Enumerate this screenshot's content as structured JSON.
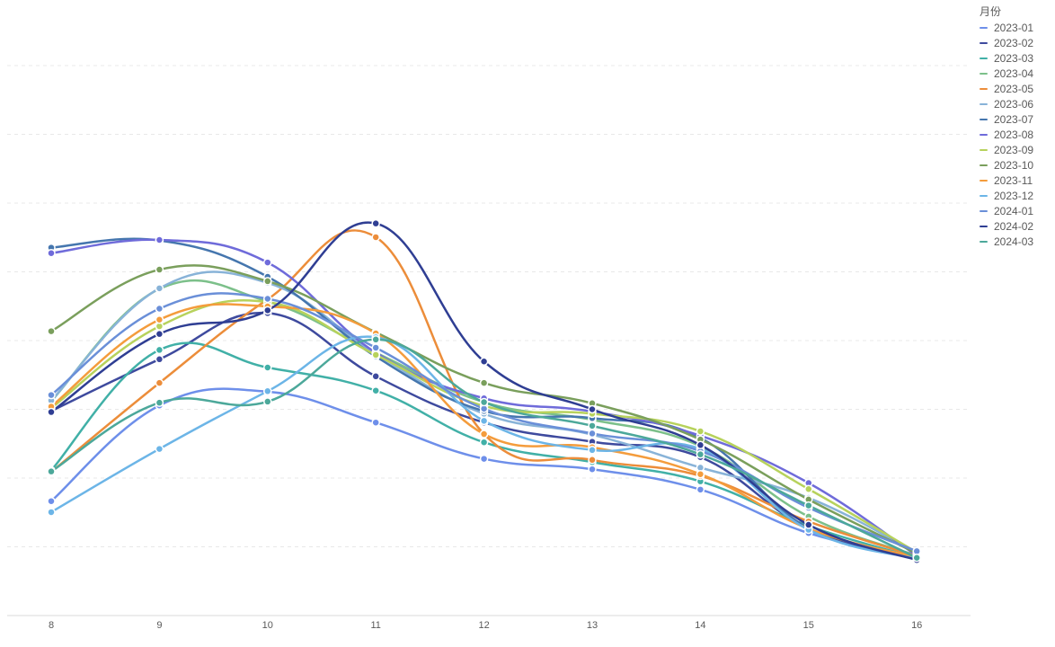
{
  "chart_data": {
    "type": "line",
    "title": "",
    "xlabel": "",
    "ylabel": "",
    "x": [
      "8",
      "9",
      "10",
      "11",
      "12",
      "13",
      "14",
      "15",
      "16"
    ],
    "ylim": [
      0,
      100
    ],
    "grid": true,
    "legend_title": "月份",
    "legend_position": "top-right",
    "series": [
      {
        "name": "2023-01",
        "color": "#6E8FEA",
        "values": [
          20.8,
          38.2,
          40.7,
          35.1,
          28.5,
          26.6,
          22.9,
          15.0,
          10.6
        ]
      },
      {
        "name": "2023-02",
        "color": "#3E4A9E",
        "values": [
          37.2,
          46.6,
          55.0,
          43.5,
          35.1,
          31.6,
          28.8,
          15.8,
          10.3
        ]
      },
      {
        "name": "2023-03",
        "color": "#41B0A7",
        "values": [
          26.4,
          48.3,
          45.1,
          40.9,
          31.5,
          27.9,
          24.4,
          16.3,
          10.5
        ]
      },
      {
        "name": "2023-04",
        "color": "#7CC08A",
        "values": [
          39.0,
          59.4,
          57.1,
          47.8,
          38.8,
          35.6,
          30.8,
          18.0,
          10.9
        ]
      },
      {
        "name": "2023-05",
        "color": "#EC8D3A",
        "values": [
          26.1,
          42.3,
          57.5,
          68.8,
          33.0,
          28.3,
          25.4,
          17.1,
          10.8
        ]
      },
      {
        "name": "2023-06",
        "color": "#88B3D8",
        "values": [
          39.1,
          59.5,
          60.5,
          47.6,
          36.7,
          32.9,
          26.9,
          21.4,
          11.4
        ]
      },
      {
        "name": "2023-07",
        "color": "#4576AE",
        "values": [
          66.9,
          68.2,
          61.6,
          47.1,
          37.2,
          35.9,
          32.3,
          15.8,
          10.5
        ]
      },
      {
        "name": "2023-08",
        "color": "#6F6BDA",
        "values": [
          65.9,
          68.3,
          64.2,
          47.8,
          39.5,
          37.1,
          32.7,
          24.1,
          10.9
        ]
      },
      {
        "name": "2023-09",
        "color": "#B7D25C",
        "values": [
          37.7,
          52.6,
          57.0,
          47.4,
          38.1,
          36.7,
          33.5,
          23.0,
          11.5
        ]
      },
      {
        "name": "2023-10",
        "color": "#7A9F5C",
        "values": [
          51.7,
          62.9,
          60.8,
          51.5,
          42.3,
          38.6,
          32.0,
          21.1,
          11.3
        ]
      },
      {
        "name": "2023-11",
        "color": "#F49C3C",
        "values": [
          38.0,
          53.8,
          56.2,
          51.3,
          33.0,
          30.6,
          25.7,
          15.8,
          10.6
        ]
      },
      {
        "name": "2023-12",
        "color": "#6CB5E7",
        "values": [
          18.8,
          30.3,
          40.8,
          50.6,
          35.4,
          30.1,
          30.3,
          15.6,
          10.3
        ]
      },
      {
        "name": "2024-01",
        "color": "#6A8FD8",
        "values": [
          40.1,
          55.8,
          57.6,
          48.7,
          37.6,
          33.1,
          29.9,
          19.6,
          11.7
        ]
      },
      {
        "name": "2024-02",
        "color": "#2F3E93",
        "values": [
          37.0,
          51.2,
          55.5,
          71.3,
          46.2,
          37.5,
          31.0,
          16.5,
          10.1
        ]
      },
      {
        "name": "2024-03",
        "color": "#4CA89A",
        "values": [
          26.2,
          38.7,
          38.9,
          50.2,
          38.8,
          34.5,
          29.3,
          20.0,
          10.5
        ]
      }
    ]
  }
}
